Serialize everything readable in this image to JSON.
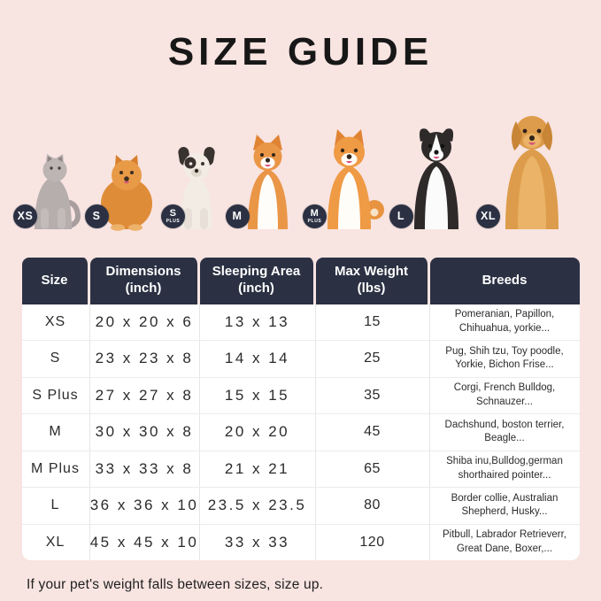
{
  "title": "SIZE GUIDE",
  "note": "If your pet's weight falls between sizes, size up.",
  "colors": {
    "background": "#f8e4e1",
    "header_bg": "#2b3143",
    "badge_bg": "#2b3143",
    "table_bg": "#ffffff",
    "grid_line": "#e6e6e6",
    "text": "#1d1d1f"
  },
  "animals": [
    {
      "species": "cat",
      "badge": "XS",
      "badge_sub": ""
    },
    {
      "species": "pomeranian",
      "badge": "S",
      "badge_sub": ""
    },
    {
      "species": "french-bulldog",
      "badge": "S",
      "badge_sub": "PLUS"
    },
    {
      "species": "corgi",
      "badge": "M",
      "badge_sub": ""
    },
    {
      "species": "shiba-inu",
      "badge": "M",
      "badge_sub": "PLUS"
    },
    {
      "species": "border-collie",
      "badge": "L",
      "badge_sub": ""
    },
    {
      "species": "golden-retriever",
      "badge": "XL",
      "badge_sub": ""
    }
  ],
  "table": {
    "headers": [
      {
        "line1": "Size",
        "line2": ""
      },
      {
        "line1": "Dimensions",
        "line2": "(inch)"
      },
      {
        "line1": "Sleeping Area",
        "line2": "(inch)"
      },
      {
        "line1": "Max Weight",
        "line2": "(lbs)"
      },
      {
        "line1": "Breeds",
        "line2": ""
      }
    ],
    "rows": [
      {
        "size": "XS",
        "dimensions": "20 x 20 x 6",
        "sleeping_area": "13 x 13",
        "max_weight": "15",
        "breeds": "Pomeranian, Papillon, Chihuahua, yorkie..."
      },
      {
        "size": "S",
        "dimensions": "23 x 23 x 8",
        "sleeping_area": "14 x 14",
        "max_weight": "25",
        "breeds": "Pug, Shih tzu, Toy poodle, Yorkie, Bichon Frise..."
      },
      {
        "size": "S Plus",
        "dimensions": "27 x 27 x 8",
        "sleeping_area": "15 x 15",
        "max_weight": "35",
        "breeds": "Corgi, French Bulldog, Schnauzer..."
      },
      {
        "size": "M",
        "dimensions": "30 x 30 x 8",
        "sleeping_area": "20 x 20",
        "max_weight": "45",
        "breeds": "Dachshund, boston terrier, Beagle..."
      },
      {
        "size": "M Plus",
        "dimensions": "33 x 33 x 8",
        "sleeping_area": "21 x 21",
        "max_weight": "65",
        "breeds": "Shiba inu,Bulldog,german shorthaired pointer..."
      },
      {
        "size": "L",
        "dimensions": "36 x 36 x 10",
        "sleeping_area": "23.5 x 23.5",
        "max_weight": "80",
        "breeds": "Border collie, Australian Shepherd, Husky..."
      },
      {
        "size": "XL",
        "dimensions": "45 x 45 x 10",
        "sleeping_area": "33 x 33",
        "max_weight": "120",
        "breeds": "Pitbull, Labrador Retrieverr, Great Dane, Boxer,..."
      }
    ]
  }
}
